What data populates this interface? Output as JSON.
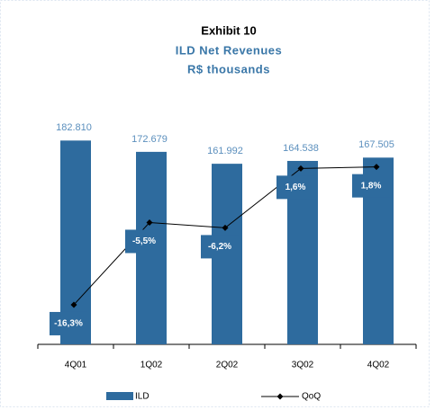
{
  "chart_data": {
    "type": "bar",
    "title": "Exhibit 10",
    "subtitle": "ILD  Net Revenues",
    "unit_label": "R$ thousands",
    "categories": [
      "4Q01",
      "1Q02",
      "2Q02",
      "3Q02",
      "4Q02"
    ],
    "series": [
      {
        "name": "ILD",
        "type": "bar",
        "color": "#2e6b9e",
        "values": [
          182810,
          172679,
          161992,
          164538,
          167505
        ],
        "value_labels": [
          "182.810",
          "172.679",
          "161.992",
          "164.538",
          "167.505"
        ]
      },
      {
        "name": "QoQ",
        "type": "line",
        "axis": "y2",
        "color": "#000000",
        "values": [
          -16.3,
          -5.5,
          -6.2,
          1.6,
          1.8
        ],
        "value_labels": [
          "-16,3%",
          "-5,5%",
          "-6,2%",
          "1,6%",
          "1,8%"
        ]
      }
    ],
    "ylim": [
      0,
      250000
    ],
    "y2lim": [
      -21.5,
      15.1
    ],
    "legend": "bottom"
  }
}
